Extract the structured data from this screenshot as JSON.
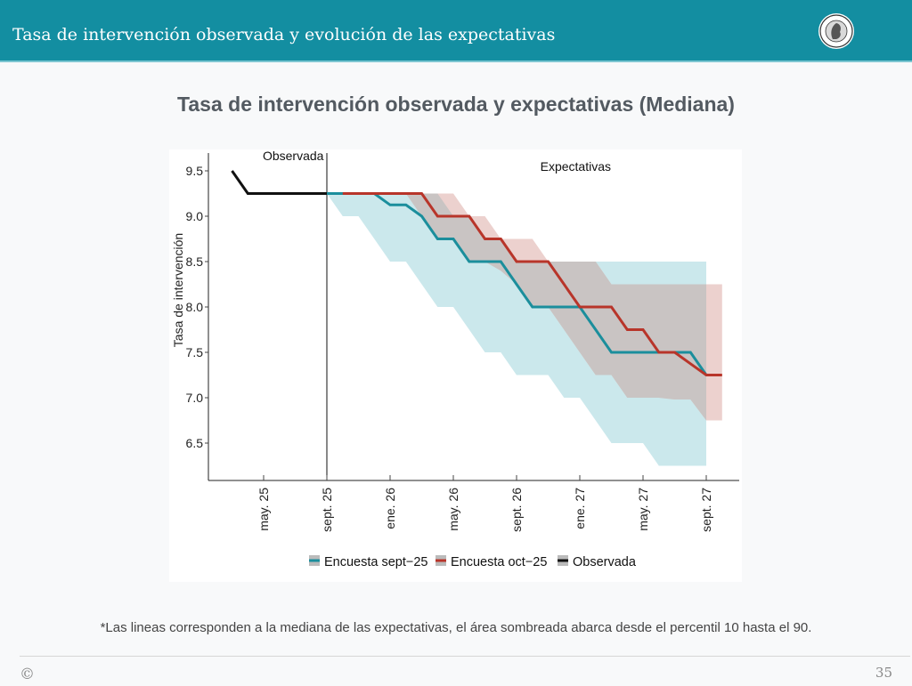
{
  "header": {
    "title": "Tasa de intervención observada y evolución de las expectativas",
    "logo": "banco-de-la-republica-seal-icon"
  },
  "main_title": "Tasa de intervención observada y expectativas (Mediana)",
  "footnote": "*Las lineas corresponden a la mediana de las expectativas, el área sombreada abarca desde el percentil 10 hasta el 90.",
  "footer": {
    "copyright_symbol": "©",
    "page_number": "35"
  },
  "chart_data": {
    "type": "line",
    "title": "",
    "xlabel": "",
    "ylabel": "Tasa de intervención",
    "ylim": [
      6.15,
      9.65
    ],
    "yticks": [
      6.5,
      7.0,
      7.5,
      8.0,
      8.5,
      9.0,
      9.5
    ],
    "ytick_labels": [
      "6.5",
      "7.0",
      "7.5",
      "8.0",
      "8.5",
      "9.0",
      "9.5"
    ],
    "x_unit": "months relative to sept. 25",
    "xlim": [
      -7,
      26.5
    ],
    "xticks": [
      -4,
      0,
      4,
      8,
      12,
      16,
      20,
      24
    ],
    "xtick_labels": [
      "may. 25",
      "sept. 25",
      "ene. 26",
      "may. 26",
      "sept. 26",
      "ene. 27",
      "may. 27",
      "sept. 27"
    ],
    "annotations": [
      {
        "text": "Observada",
        "x": -0.2,
        "y": 9.6,
        "anchor": "end"
      },
      {
        "text": "Expectativas",
        "x": 13.5,
        "y": 9.5,
        "anchor": "start"
      }
    ],
    "vline_x": 0,
    "legend": {
      "position": "bottom",
      "entries": [
        "Encuesta sept−25",
        "Encuesta oct−25",
        "Observada"
      ]
    },
    "colors": {
      "sept": "#1b8e9c",
      "oct": "#b8352a",
      "obs": "#111111",
      "sept_band": "#cbe8ec",
      "oct_band": "#e9c9c6",
      "overlap_band": "#c9c4c3"
    },
    "series": [
      {
        "name": "Observada",
        "x": [
          -6,
          -5,
          -4,
          -3,
          -2,
          -1,
          0
        ],
        "values": [
          9.5,
          9.25,
          9.25,
          9.25,
          9.25,
          9.25,
          9.25
        ]
      },
      {
        "name": "Encuesta sept−25",
        "x": [
          0,
          1,
          2,
          3,
          4,
          5,
          6,
          7,
          8,
          9,
          10,
          11,
          12,
          13,
          14,
          15,
          16,
          17,
          18,
          19,
          20,
          21,
          22,
          23,
          24
        ],
        "values": [
          9.25,
          9.25,
          9.25,
          9.25,
          9.125,
          9.125,
          9.0,
          8.75,
          8.75,
          8.5,
          8.5,
          8.5,
          8.25,
          8.0,
          8.0,
          8.0,
          8.0,
          7.75,
          7.5,
          7.5,
          7.5,
          7.5,
          7.5,
          7.5,
          7.25
        ],
        "p10": [
          9.25,
          9.0,
          9.0,
          8.75,
          8.5,
          8.5,
          8.25,
          8.0,
          8.0,
          7.75,
          7.5,
          7.5,
          7.25,
          7.25,
          7.25,
          7.0,
          7.0,
          6.75,
          6.5,
          6.5,
          6.5,
          6.25,
          6.25,
          6.25,
          6.25
        ],
        "p90": [
          9.25,
          9.25,
          9.25,
          9.25,
          9.25,
          9.25,
          9.25,
          9.25,
          9.0,
          9.0,
          8.75,
          8.75,
          8.5,
          8.5,
          8.5,
          8.5,
          8.5,
          8.5,
          8.5,
          8.5,
          8.5,
          8.5,
          8.5,
          8.5,
          8.5
        ]
      },
      {
        "name": "Encuesta oct−25",
        "x": [
          1,
          2,
          3,
          4,
          5,
          6,
          7,
          8,
          9,
          10,
          11,
          12,
          13,
          14,
          15,
          16,
          17,
          18,
          19,
          20,
          21,
          22,
          23,
          24,
          25
        ],
        "values": [
          9.25,
          9.25,
          9.25,
          9.25,
          9.25,
          9.25,
          9.0,
          9.0,
          9.0,
          8.75,
          8.75,
          8.5,
          8.5,
          8.5,
          8.25,
          8.0,
          8.0,
          8.0,
          7.75,
          7.75,
          7.5,
          7.5,
          7.375,
          7.25,
          7.25
        ],
        "p10": [
          9.25,
          9.25,
          9.25,
          9.25,
          9.25,
          9.0,
          8.75,
          8.75,
          8.5,
          8.5,
          8.4,
          8.25,
          8.0,
          8.0,
          7.75,
          7.5,
          7.25,
          7.25,
          7.0,
          7.0,
          7.0,
          6.98,
          6.98,
          6.75,
          6.75
        ],
        "p90": [
          9.25,
          9.25,
          9.25,
          9.25,
          9.25,
          9.25,
          9.25,
          9.25,
          9.0,
          9.0,
          8.75,
          8.75,
          8.75,
          8.5,
          8.5,
          8.5,
          8.5,
          8.25,
          8.25,
          8.25,
          8.25,
          8.25,
          8.25,
          8.25,
          8.25
        ]
      }
    ]
  }
}
